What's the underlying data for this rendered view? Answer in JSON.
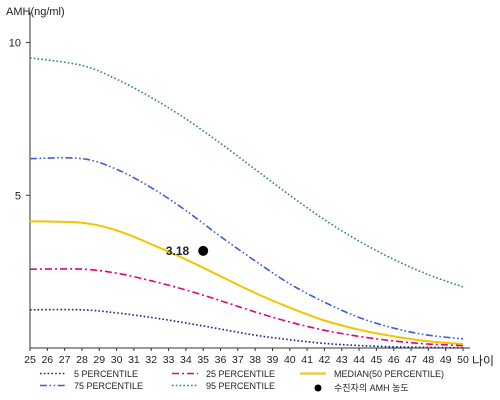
{
  "chart_data": {
    "type": "line",
    "ylabel": "AMH(ng/ml)",
    "xlabel": "나이",
    "xlim": [
      25,
      50
    ],
    "ylim": [
      0,
      11
    ],
    "yticks": [
      5,
      10
    ],
    "x_ticks": [
      25,
      26,
      27,
      28,
      29,
      30,
      31,
      32,
      33,
      34,
      35,
      36,
      37,
      38,
      39,
      40,
      41,
      42,
      43,
      44,
      45,
      46,
      47,
      48,
      49,
      50
    ],
    "grid": false,
    "legend_position": "bottom",
    "series": [
      {
        "name": "5 PERCENTILE",
        "color": "#1a237e",
        "style": "dotted",
        "x": [
          25,
          28,
          30,
          32,
          34,
          36,
          38,
          40,
          42,
          44,
          46,
          48,
          50
        ],
        "values": [
          1.25,
          1.25,
          1.15,
          1.0,
          0.82,
          0.62,
          0.42,
          0.27,
          0.15,
          0.08,
          0.04,
          0.02,
          0.01
        ]
      },
      {
        "name": "25 PERCENTILE",
        "color": "#e6007e",
        "style": "dash-dot",
        "x": [
          25,
          28,
          30,
          32,
          34,
          36,
          38,
          40,
          42,
          44,
          46,
          48,
          50
        ],
        "values": [
          2.58,
          2.58,
          2.45,
          2.2,
          1.9,
          1.55,
          1.18,
          0.85,
          0.58,
          0.38,
          0.23,
          0.13,
          0.08
        ]
      },
      {
        "name": "MEDIAN(50 PERCENTILE)",
        "color": "#f2c500",
        "style": "solid",
        "x": [
          25,
          28,
          30,
          32,
          34,
          36,
          38,
          40,
          42,
          44,
          46,
          48,
          50
        ],
        "values": [
          4.15,
          4.1,
          3.85,
          3.4,
          2.9,
          2.35,
          1.8,
          1.32,
          0.9,
          0.6,
          0.38,
          0.22,
          0.13
        ]
      },
      {
        "name": "75 PERCENTILE",
        "color": "#3b5bdb",
        "style": "dash-dot-dot",
        "x": [
          25,
          28,
          30,
          32,
          34,
          36,
          38,
          40,
          42,
          44,
          46,
          48,
          50
        ],
        "values": [
          6.2,
          6.2,
          5.85,
          5.25,
          4.5,
          3.65,
          2.85,
          2.1,
          1.5,
          1.0,
          0.65,
          0.42,
          0.3
        ]
      },
      {
        "name": "95 PERCENTILE",
        "color": "#2e8b57",
        "style": "dotted",
        "x": [
          25,
          28,
          30,
          32,
          34,
          36,
          38,
          40,
          42,
          44,
          46,
          48,
          50
        ],
        "values": [
          9.5,
          9.25,
          8.8,
          8.2,
          7.5,
          6.7,
          5.85,
          5.0,
          4.2,
          3.5,
          2.9,
          2.4,
          2.0
        ]
      }
    ],
    "point": {
      "name": "수진자의 AMH 농도",
      "x": 35,
      "y": 3.18,
      "label": "3.18",
      "color": "#000000"
    },
    "legend": [
      "5 PERCENTILE",
      "25 PERCENTILE",
      "MEDIAN(50 PERCENTILE)",
      "75 PERCENTILE",
      "95 PERCENTILE",
      "수진자의 AMH 농도"
    ]
  }
}
